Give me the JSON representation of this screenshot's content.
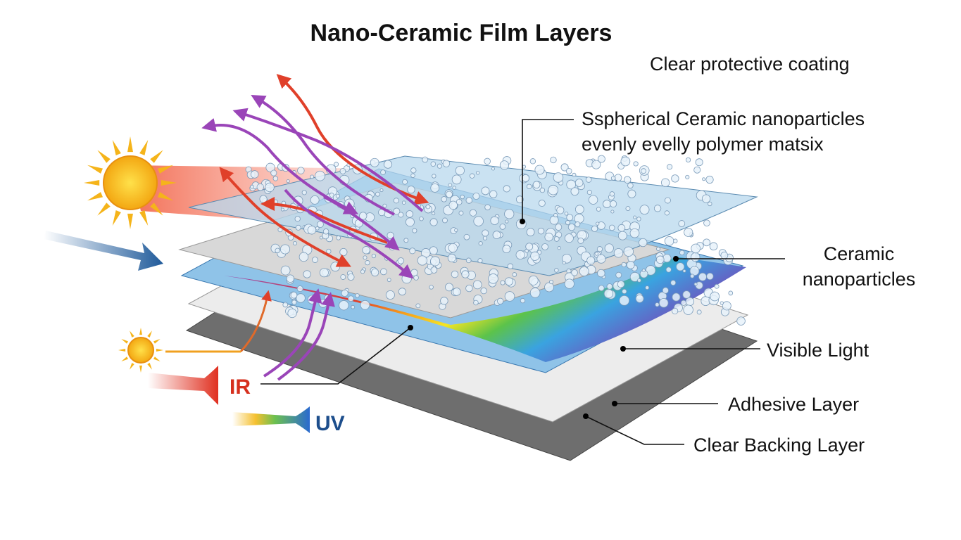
{
  "title": "Nano-Ceramic Film Layers",
  "labels": {
    "coating": "Clear protective coating",
    "spherical": [
      "Sspherical Ceramic nanoparticles",
      "evenly evelly polymer matsix"
    ],
    "ceramic": [
      "Ceramic",
      "nanoparticles"
    ],
    "visible": "Visible Light",
    "adhesive": "Adhesive Layer",
    "backing": "Clear Backing Layer",
    "ir": "IR",
    "uv": "UV"
  }
}
